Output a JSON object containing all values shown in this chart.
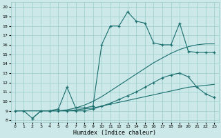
{
  "xlabel": "Humidex (Indice chaleur)",
  "xlim": [
    -0.5,
    23.5
  ],
  "ylim": [
    7.8,
    20.5
  ],
  "xticks": [
    0,
    1,
    2,
    3,
    4,
    5,
    6,
    7,
    8,
    9,
    10,
    11,
    12,
    13,
    14,
    15,
    16,
    17,
    18,
    19,
    20,
    21,
    22,
    23
  ],
  "yticks": [
    8,
    9,
    10,
    11,
    12,
    13,
    14,
    15,
    16,
    17,
    18,
    19,
    20
  ],
  "bg_color": "#cce8e8",
  "grid_color": "#99cccc",
  "line_color": "#1a6e6e",
  "line1_x": [
    0,
    1,
    2,
    3,
    4,
    5,
    6,
    7,
    8,
    9,
    10,
    11,
    12,
    13,
    14,
    15,
    16,
    17,
    18,
    19,
    20,
    21,
    22,
    23
  ],
  "line1_y": [
    9.0,
    9.0,
    9.0,
    9.0,
    9.0,
    9.0,
    9.0,
    9.1,
    9.2,
    9.3,
    9.5,
    9.7,
    9.9,
    10.1,
    10.3,
    10.5,
    10.7,
    10.9,
    11.1,
    11.3,
    11.5,
    11.6,
    11.7,
    11.8
  ],
  "line2_x": [
    0,
    1,
    2,
    3,
    4,
    5,
    6,
    7,
    8,
    9,
    10,
    11,
    12,
    13,
    14,
    15,
    16,
    17,
    18,
    19,
    20,
    21,
    22,
    23
  ],
  "line2_y": [
    9.0,
    9.0,
    9.0,
    9.0,
    9.0,
    9.0,
    9.1,
    9.3,
    9.6,
    10.0,
    10.5,
    11.1,
    11.7,
    12.3,
    12.9,
    13.5,
    14.1,
    14.6,
    15.1,
    15.5,
    15.8,
    16.0,
    16.1,
    16.1
  ],
  "line3_x": [
    0,
    1,
    2,
    3,
    4,
    5,
    6,
    7,
    8,
    9,
    10,
    11,
    12,
    13,
    14,
    15,
    16,
    17,
    18,
    19,
    20,
    21,
    22,
    23
  ],
  "line3_y": [
    9.0,
    9.0,
    8.2,
    9.0,
    9.0,
    9.2,
    11.5,
    9.3,
    9.3,
    9.5,
    16.0,
    18.0,
    18.0,
    19.5,
    18.5,
    18.3,
    16.2,
    16.0,
    16.0,
    18.3,
    15.3,
    15.2,
    15.2,
    15.2
  ],
  "line4_x": [
    2,
    3,
    4,
    5,
    6,
    7,
    8,
    9,
    10,
    11,
    12,
    13,
    14,
    15,
    16,
    17,
    18,
    19,
    20,
    21,
    22,
    23
  ],
  "line4_y": [
    8.2,
    9.0,
    9.0,
    9.0,
    9.0,
    9.0,
    9.0,
    9.2,
    9.5,
    9.8,
    10.2,
    10.6,
    11.0,
    11.5,
    12.0,
    12.5,
    12.8,
    13.0,
    12.6,
    11.5,
    10.8,
    10.4
  ]
}
